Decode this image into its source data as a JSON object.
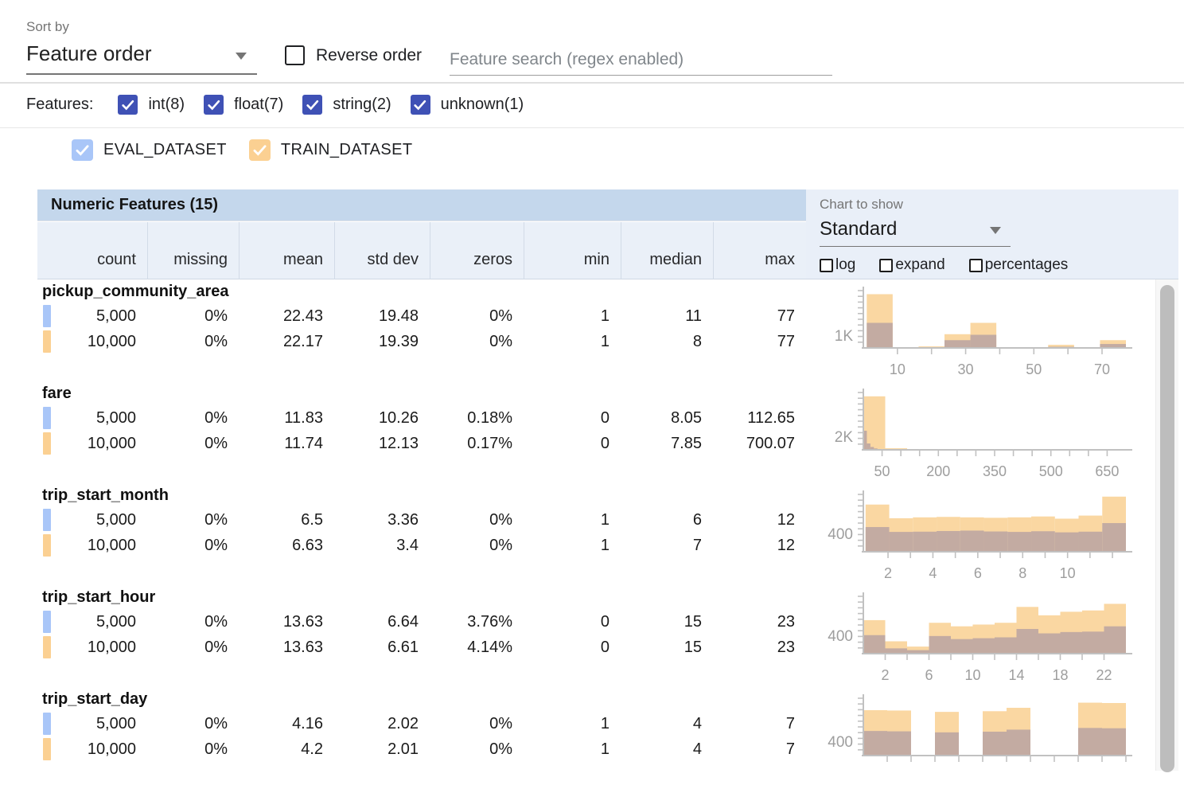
{
  "toolbar": {
    "sort_by_label": "Sort by",
    "sort_by_value": "Feature order",
    "reverse_order_label": "Reverse order",
    "reverse_order_checked": false,
    "search_placeholder": "Feature search (regex enabled)"
  },
  "filter_bar": {
    "label": "Features:",
    "types": [
      {
        "label": "int(8)",
        "checked": true
      },
      {
        "label": "float(7)",
        "checked": true
      },
      {
        "label": "string(2)",
        "checked": true
      },
      {
        "label": "unknown(1)",
        "checked": true
      }
    ],
    "checkbox_color": "#3f51b5"
  },
  "dataset_legend": {
    "datasets": [
      {
        "name": "EVAL_DATASET",
        "checked": true,
        "color": "#a9c6f8"
      },
      {
        "name": "TRAIN_DATASET",
        "checked": true,
        "color": "#fbd092"
      }
    ]
  },
  "table": {
    "title": "Numeric Features (15)",
    "title_bg": "#c4d7ec",
    "header_bg": "#eaf0f8",
    "columns": [
      "count",
      "missing",
      "mean",
      "std dev",
      "zeros",
      "min",
      "median",
      "max"
    ],
    "features": [
      {
        "name": "pickup_community_area",
        "rows": [
          {
            "dataset": "EVAL_DATASET",
            "values": [
              "5,000",
              "0%",
              "22.43",
              "19.48",
              "0%",
              "1",
              "11",
              "77"
            ]
          },
          {
            "dataset": "TRAIN_DATASET",
            "values": [
              "10,000",
              "0%",
              "22.17",
              "19.39",
              "0%",
              "1",
              "8",
              "77"
            ]
          }
        ]
      },
      {
        "name": "fare",
        "rows": [
          {
            "dataset": "EVAL_DATASET",
            "values": [
              "5,000",
              "0%",
              "11.83",
              "10.26",
              "0.18%",
              "0",
              "8.05",
              "112.65"
            ]
          },
          {
            "dataset": "TRAIN_DATASET",
            "values": [
              "10,000",
              "0%",
              "11.74",
              "12.13",
              "0.17%",
              "0",
              "7.85",
              "700.07"
            ]
          }
        ]
      },
      {
        "name": "trip_start_month",
        "rows": [
          {
            "dataset": "EVAL_DATASET",
            "values": [
              "5,000",
              "0%",
              "6.5",
              "3.36",
              "0%",
              "1",
              "6",
              "12"
            ]
          },
          {
            "dataset": "TRAIN_DATASET",
            "values": [
              "10,000",
              "0%",
              "6.63",
              "3.4",
              "0%",
              "1",
              "7",
              "12"
            ]
          }
        ]
      },
      {
        "name": "trip_start_hour",
        "rows": [
          {
            "dataset": "EVAL_DATASET",
            "values": [
              "5,000",
              "0%",
              "13.63",
              "6.64",
              "3.76%",
              "0",
              "15",
              "23"
            ]
          },
          {
            "dataset": "TRAIN_DATASET",
            "values": [
              "10,000",
              "0%",
              "13.63",
              "6.61",
              "4.14%",
              "0",
              "15",
              "23"
            ]
          }
        ]
      },
      {
        "name": "trip_start_day",
        "rows": [
          {
            "dataset": "EVAL_DATASET",
            "values": [
              "5,000",
              "0%",
              "4.16",
              "2.02",
              "0%",
              "1",
              "4",
              "7"
            ]
          },
          {
            "dataset": "TRAIN_DATASET",
            "values": [
              "10,000",
              "0%",
              "4.2",
              "2.01",
              "0%",
              "1",
              "4",
              "7"
            ]
          }
        ]
      }
    ]
  },
  "chart_controls": {
    "label": "Chart to show",
    "value": "Standard",
    "panel_bg": "#e9eff8",
    "options": [
      {
        "label": "log",
        "checked": false
      },
      {
        "label": "expand",
        "checked": false
      },
      {
        "label": "percentages",
        "checked": false
      }
    ]
  },
  "chart_colors": {
    "train_bar": "#fad7a2",
    "overlap_bar": "#c3aba2",
    "axis": "#c1c1c1",
    "tick_label": "#9e9e9e"
  },
  "chart_data": [
    {
      "type": "histogram",
      "feature": "pickup_community_area",
      "x_range": [
        0,
        77
      ],
      "x_minor_ticks": [
        10,
        20,
        30,
        40,
        50,
        60,
        70
      ],
      "x_tick_labels": [
        10,
        30,
        50,
        70
      ],
      "y_label": {
        "text": "1K",
        "value": 1000
      },
      "y_max": 4800,
      "series": [
        {
          "name": "TRAIN_DATASET",
          "x_range": [
            1,
            77
          ],
          "values": [
            4500,
            60,
            130,
            1150,
            2100,
            40,
            40,
            260,
            20,
            650
          ]
        },
        {
          "name": "EVAL_DATASET",
          "x_range": [
            1,
            77
          ],
          "values": [
            2100,
            25,
            55,
            650,
            1100,
            15,
            15,
            100,
            10,
            330
          ]
        }
      ]
    },
    {
      "type": "histogram",
      "feature": "fare",
      "x_range": [
        0,
        700
      ],
      "x_minor_ticks": [
        50,
        100,
        150,
        200,
        250,
        300,
        350,
        400,
        450,
        500,
        550,
        600,
        650
      ],
      "x_tick_labels": [
        50,
        200,
        350,
        500,
        650
      ],
      "y_label": {
        "text": "2K",
        "value": 2000
      },
      "y_max": 9000,
      "series": [
        {
          "name": "TRAIN_DATASET",
          "x_range": [
            0,
            700
          ],
          "values": [
            8400,
            250,
            60,
            25,
            12,
            8,
            6,
            5,
            4,
            3,
            2,
            2
          ]
        },
        {
          "name": "EVAL_DATASET",
          "x_range": [
            0,
            113
          ],
          "values": [
            3000,
            1000,
            450,
            220,
            120,
            70,
            45,
            30,
            22,
            16,
            12,
            10
          ]
        }
      ]
    },
    {
      "type": "histogram",
      "feature": "trip_start_month",
      "x_range": [
        0.9,
        12.6
      ],
      "x_minor_ticks": [
        2,
        3,
        4,
        5,
        6,
        7,
        8,
        9,
        10,
        11,
        12
      ],
      "x_tick_labels": [
        2,
        4,
        6,
        8,
        10
      ],
      "y_label": {
        "text": "400",
        "value": 400
      },
      "y_max": 1300,
      "series": [
        {
          "name": "TRAIN_DATASET",
          "x_range": [
            1,
            12.6
          ],
          "values": [
            1070,
            760,
            780,
            790,
            780,
            770,
            780,
            800,
            750,
            820,
            1250
          ]
        },
        {
          "name": "EVAL_DATASET",
          "x_range": [
            1,
            12.6
          ],
          "values": [
            560,
            450,
            455,
            470,
            480,
            460,
            450,
            465,
            440,
            455,
            650
          ]
        }
      ]
    },
    {
      "type": "histogram",
      "feature": "trip_start_hour",
      "x_range": [
        0,
        24
      ],
      "x_minor_ticks": [
        2,
        4,
        6,
        8,
        10,
        12,
        14,
        16,
        18,
        20,
        22
      ],
      "x_tick_labels": [
        2,
        6,
        10,
        14,
        18,
        22
      ],
      "y_label": {
        "text": "400",
        "value": 400
      },
      "y_max": 1300,
      "series": [
        {
          "name": "TRAIN_DATASET",
          "x_range": [
            0,
            24
          ],
          "values": [
            760,
            280,
            160,
            700,
            620,
            660,
            700,
            1060,
            870,
            950,
            980,
            1130
          ]
        },
        {
          "name": "EVAL_DATASET",
          "x_range": [
            0,
            24
          ],
          "values": [
            420,
            120,
            80,
            400,
            330,
            350,
            370,
            560,
            460,
            490,
            500,
            620
          ]
        }
      ]
    },
    {
      "type": "histogram",
      "feature": "trip_start_day",
      "x_range": [
        1,
        7.6
      ],
      "x_minor_ticks": [
        1.6,
        2.2,
        2.8,
        3.4,
        4.0,
        4.6,
        5.2,
        5.8,
        6.4,
        7.0,
        7.6
      ],
      "x_tick_labels": [],
      "y_label": {
        "text": "400",
        "value": 400
      },
      "y_max": 1680,
      "series": [
        {
          "name": "TRAIN_DATASET",
          "x_range": [
            1,
            7.6
          ],
          "values": [
            1330,
            1320,
            0,
            1280,
            0,
            1300,
            1400,
            0,
            0,
            1550,
            1540
          ]
        },
        {
          "name": "EVAL_DATASET",
          "x_range": [
            1,
            7.6
          ],
          "values": [
            720,
            710,
            0,
            680,
            0,
            700,
            760,
            0,
            0,
            810,
            800
          ]
        }
      ]
    }
  ]
}
